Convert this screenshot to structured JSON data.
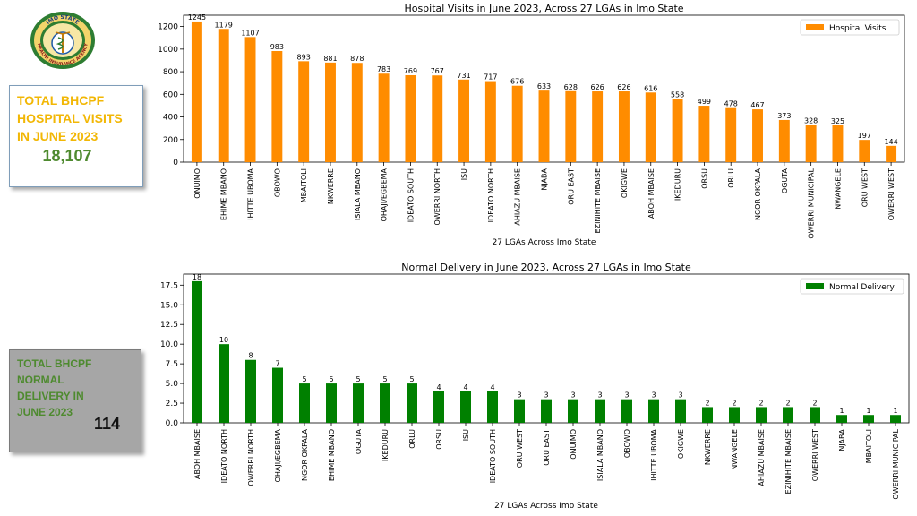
{
  "logo": {
    "arc_text": "IMO STATE",
    "ring_text": "HEALTH INSURANCE AGENCY"
  },
  "card_visits": {
    "title": "TOTAL  BHCPF\nHOSPITAL  VISITS\nIN JUNE 2023",
    "value": "18,107"
  },
  "card_delivery": {
    "title": "TOTAL BHCPF\nNORMAL\nDELIVERY IN\nJUNE 2023",
    "value": "114"
  },
  "colors": {
    "visits_bar": "#ff8c00",
    "delivery_bar": "#008000",
    "card_title_yellow": "#f2b705",
    "card_value_green": "#4e8a2f"
  },
  "chart_data": [
    {
      "type": "bar",
      "title": "Hospital Visits in June 2023, Across 27 LGAs in Imo State",
      "xlabel": "27 LGAs Across Imo State",
      "ylabel": "",
      "legend": "Hospital Visits",
      "legend_position": "top-right",
      "ylim": [
        0,
        1300
      ],
      "yticks": [
        0,
        200,
        400,
        600,
        800,
        1000,
        1200
      ],
      "ytick_labels": [
        "0",
        "200",
        "400",
        "600",
        "800",
        "1000",
        "1200"
      ],
      "categories": [
        "ONUIMO",
        "EHIME MBANO",
        "IHITTE UBOMA",
        "OBOWO",
        "MBAITOLI",
        "NKWERRE",
        "ISIALA MBANO",
        "OHAJI/EGBEMA",
        "IDEATO SOUTH",
        "OWERRI NORTH",
        "ISU",
        "IDEATO NORTH",
        "AHIAZU MBAISE",
        "NJABA",
        "ORU EAST",
        "EZINIHITE MBAISE",
        "OKIGWE",
        "ABOH MBAISE",
        "IKEDURU",
        "ORSU",
        "ORLU",
        "NGOR OKPALA",
        "OGUTA",
        "OWERRI MUNICIPAL",
        "NWANGELE",
        "ORU WEST",
        "OWERRI WEST"
      ],
      "values": [
        1245,
        1179,
        1107,
        983,
        893,
        881,
        878,
        783,
        769,
        767,
        731,
        717,
        676,
        633,
        628,
        626,
        626,
        616,
        558,
        499,
        478,
        467,
        373,
        328,
        325,
        197,
        144
      ]
    },
    {
      "type": "bar",
      "title": "Normal Delivery in June 2023, Across 27 LGAs in Imo State",
      "xlabel": "27 LGAs Across Imo State",
      "ylabel": "",
      "legend": "Normal Delivery",
      "legend_position": "top-right",
      "ylim": [
        0,
        18.9
      ],
      "yticks": [
        0,
        2.5,
        5,
        7.5,
        10,
        12.5,
        15,
        17.5
      ],
      "ytick_labels": [
        "0.0",
        "2.5",
        "5.0",
        "7.5",
        "10.0",
        "12.5",
        "15.0",
        "17.5"
      ],
      "categories": [
        "ABOH MBAISE",
        "IDEATO NORTH",
        "OWERRI NORTH",
        "OHAJI/EGBEMA",
        "NGOR OKPALA",
        "EHIME MBANO",
        "OGUTA",
        "IKEDURU",
        "ORLU",
        "ORSU",
        "ISU",
        "IDEATO SOUTH",
        "ORU WEST",
        "ORU EAST",
        "ONUIMO",
        "ISIALA MBANO",
        "OBOWO",
        "IHITTE UBOMA",
        "OKIGWE",
        "NKWERRE",
        "NWANGELE",
        "AHIAZU MBAISE",
        "EZINIHITE MBAISE",
        "OWERRI WEST",
        "NJABA",
        "MBAITOLI",
        "OWERRI MUNICIPAL"
      ],
      "values": [
        18,
        10,
        8,
        7,
        5,
        5,
        5,
        5,
        5,
        4,
        4,
        4,
        3,
        3,
        3,
        3,
        3,
        3,
        3,
        2,
        2,
        2,
        2,
        2,
        1,
        1,
        1
      ]
    }
  ]
}
